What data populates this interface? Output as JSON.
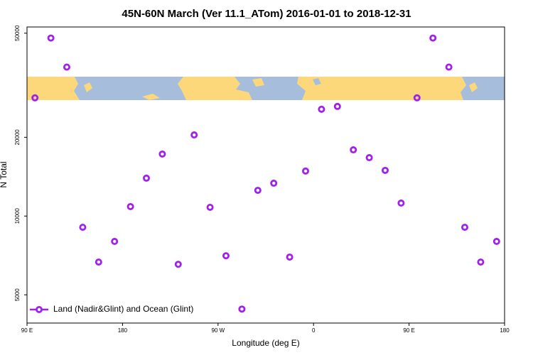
{
  "chart_data": {
    "type": "scatter",
    "title": "45N-60N March (Ver 11.1_ATom)   2016-01-01 to 2018-12-31",
    "x_label": "Longitude (deg E)",
    "y_label": "N Total",
    "x": [
      97.5,
      112.5,
      127.5,
      142.5,
      157.5,
      172.5,
      187.5,
      202.5,
      217.5,
      232.5,
      247.5,
      262.5,
      277.5,
      292.5,
      307.5,
      322.5,
      337.5,
      352.5,
      367.5,
      382.5,
      397.5,
      412.5,
      427.5,
      442.5,
      457.5,
      472.5,
      487.5,
      502.5,
      517.5,
      532.5
    ],
    "series": [
      {
        "name": "Land (Nadir&Glint) and Ocean (Glint)",
        "color": "#a020f0",
        "values": [
          28300,
          47900,
          37100,
          9060,
          6670,
          8000,
          10870,
          13960,
          17260,
          6540,
          20420,
          10800,
          7050,
          4410,
          12540,
          13350,
          6970,
          14860,
          25600,
          26240,
          17910,
          16720,
          14950,
          11210,
          28300,
          47900,
          37100,
          9060,
          6670,
          8000
        ]
      }
    ],
    "xlim": [
      90,
      540
    ],
    "xticks": [
      {
        "value": 90,
        "label": "90 E"
      },
      {
        "value": 180,
        "label": "180"
      },
      {
        "value": 270,
        "label": "90 W"
      },
      {
        "value": 360,
        "label": "0"
      },
      {
        "value": 450,
        "label": "90 E"
      },
      {
        "value": 540,
        "label": "180"
      }
    ],
    "ylim": [
      3900,
      52800
    ],
    "yticks": [
      5000,
      10000,
      20000,
      50000
    ],
    "ylog": true,
    "legend": "bottom-left"
  }
}
